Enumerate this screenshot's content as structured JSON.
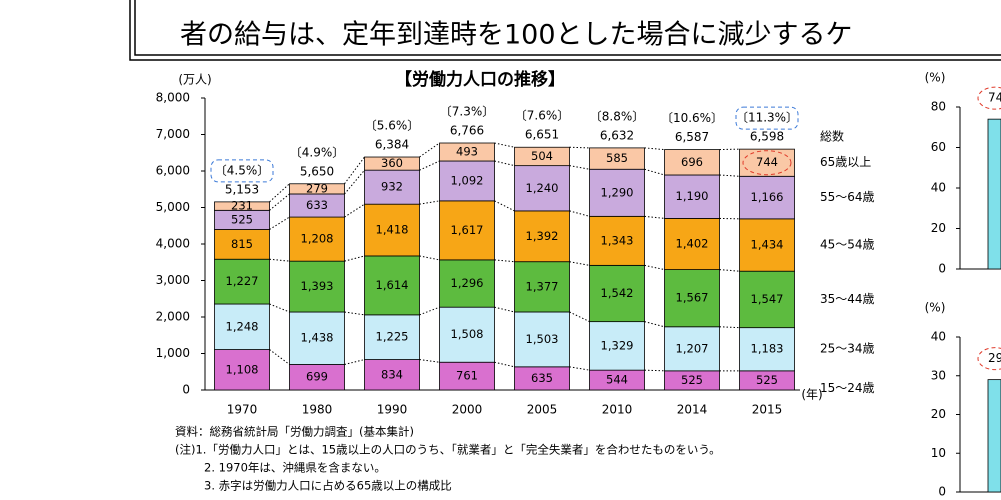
{
  "header": {
    "text": "者の給与は、定年到達時を100とした場合に減少するケ"
  },
  "chart_data": [
    {
      "type": "stacked-bar",
      "title": "【労働力人口の推移】",
      "ylabel": "(万人)",
      "xlabel": "(年)",
      "categories": [
        "1970",
        "1980",
        "1990",
        "2000",
        "2005",
        "2010",
        "2014",
        "2015"
      ],
      "ylim": [
        0,
        8000
      ],
      "yticks": [
        0,
        {
          "value": 1000,
          "label": "1,000"
        },
        {
          "value": 2000,
          "label": "2,000"
        },
        {
          "value": 3000,
          "label": "3,000"
        },
        {
          "value": 4000,
          "label": "4,000"
        },
        {
          "value": 5000,
          "label": "5,000"
        },
        {
          "value": 6000,
          "label": "6,000"
        },
        {
          "value": 7000,
          "label": "7,000"
        },
        {
          "value": 8000,
          "label": "8,000"
        }
      ],
      "series": [
        {
          "name": "15～24歳",
          "color": "#d970cf",
          "values": [
            1108,
            699,
            834,
            761,
            635,
            544,
            525,
            525
          ],
          "value_labels": [
            "1,108",
            "699",
            "834",
            "761",
            "635",
            "544",
            "525",
            "525"
          ]
        },
        {
          "name": "25～34歳",
          "color": "#c8ecf8",
          "values": [
            1248,
            1438,
            1225,
            1508,
            1503,
            1329,
            1207,
            1183
          ],
          "value_labels": [
            "1,248",
            "1,438",
            "1,225",
            "1,508",
            "1,503",
            "1,329",
            "1,207",
            "1,183"
          ]
        },
        {
          "name": "35～44歳",
          "color": "#5dbb3f",
          "values": [
            1227,
            1393,
            1614,
            1296,
            1377,
            1542,
            1567,
            1547
          ],
          "value_labels": [
            "1,227",
            "1,393",
            "1,614",
            "1,296",
            "1,377",
            "1,542",
            "1,567",
            "1,547"
          ]
        },
        {
          "name": "45～54歳",
          "color": "#f7a616",
          "values": [
            815,
            1208,
            1418,
            1617,
            1392,
            1343,
            1402,
            1434
          ],
          "value_labels": [
            "815",
            "1,208",
            "1,418",
            "1,617",
            "1,392",
            "1,343",
            "1,402",
            "1,434"
          ]
        },
        {
          "name": "55～64歳",
          "color": "#c9aadd",
          "values": [
            525,
            633,
            932,
            1092,
            1240,
            1290,
            1190,
            1166
          ],
          "value_labels": [
            "525",
            "633",
            "932",
            "1,092",
            "1,240",
            "1,290",
            "1,190",
            "1,166"
          ]
        },
        {
          "name": "65歳以上",
          "color": "#fac8a6",
          "values": [
            231,
            279,
            360,
            493,
            504,
            585,
            696,
            744
          ]
        }
      ],
      "totals": {
        "name": "総数",
        "values": [
          5153,
          5650,
          6384,
          6766,
          6651,
          6632,
          6587,
          6598
        ],
        "value_labels": [
          "5,153",
          "5,650",
          "6,384",
          "6,766",
          "6,651",
          "6,632",
          "6,587",
          "6,598"
        ]
      },
      "share_labels": {
        "values": [
          4.5,
          4.9,
          5.6,
          7.3,
          7.6,
          8.8,
          10.6,
          11.3
        ],
        "value_labels": [
          "〔4.5%〕",
          "〔4.9%〕",
          "〔5.6%〕",
          "〔7.3%〕",
          "〔7.6%〕",
          "〔8.8%〕",
          "〔10.6%〕",
          "〔11.3%〕"
        ]
      }
    },
    {
      "type": "bar",
      "ylabel": "(%)",
      "ylim": [
        0,
        80
      ],
      "yticks": [
        0,
        20,
        40,
        60,
        80
      ],
      "values": [
        74
      ],
      "color": "#7fe0ea"
    },
    {
      "type": "bar",
      "ylabel": "(%)",
      "ylim": [
        0,
        40
      ],
      "yticks": [
        0,
        10,
        20,
        30,
        40
      ],
      "values": [
        29
      ],
      "color": "#7fe0ea"
    }
  ],
  "notes": [
    "資料：総務省統計局「労働力調査」(基本集計)",
    "(注)1.「労働力人口」とは、15歳以上の人口のうち、「就業者」と「完全失業者」を合わせたものをいう。",
    "2. 1970年は、沖縄県を含まない。",
    "3. 赤字は労働力人口に占める65歳以上の構成比"
  ]
}
